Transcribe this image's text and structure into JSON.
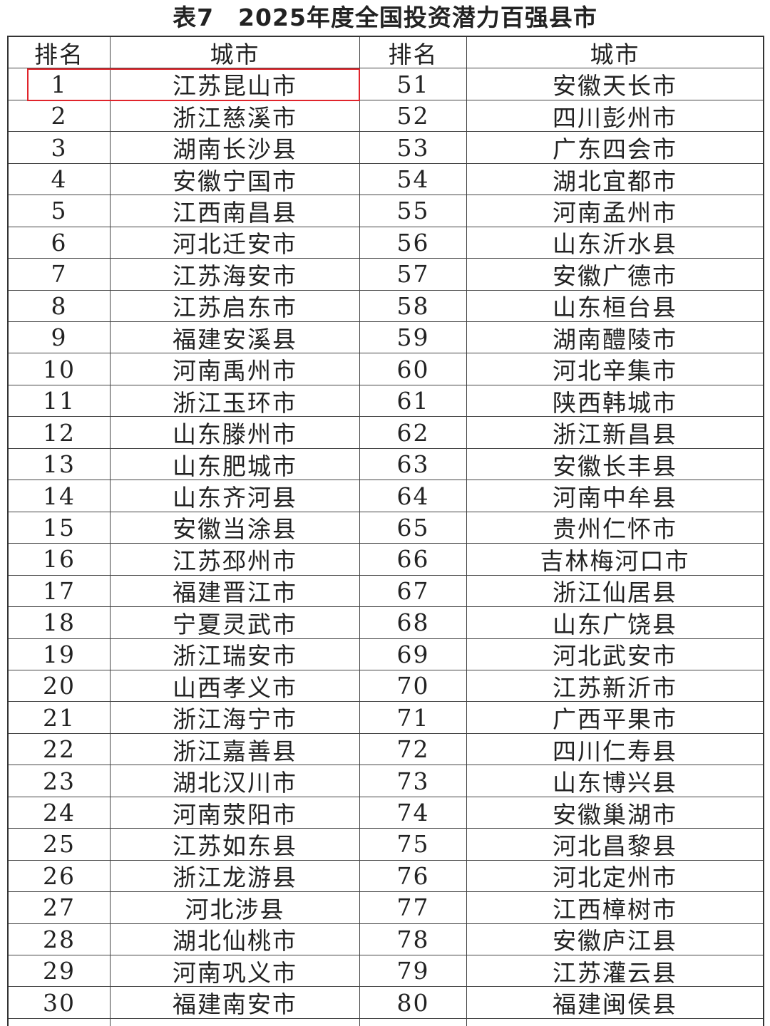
{
  "title": "表7　2025年度全国投资潜力百强县市",
  "table": {
    "columns": [
      "排名",
      "城市",
      "排名",
      "城市"
    ],
    "rows": [
      [
        1,
        "江苏昆山市",
        51,
        "安徽天长市"
      ],
      [
        2,
        "浙江慈溪市",
        52,
        "四川彭州市"
      ],
      [
        3,
        "湖南长沙县",
        53,
        "广东四会市"
      ],
      [
        4,
        "安徽宁国市",
        54,
        "湖北宜都市"
      ],
      [
        5,
        "江西南昌县",
        55,
        "河南孟州市"
      ],
      [
        6,
        "河北迁安市",
        56,
        "山东沂水县"
      ],
      [
        7,
        "江苏海安市",
        57,
        "安徽广德市"
      ],
      [
        8,
        "江苏启东市",
        58,
        "山东桓台县"
      ],
      [
        9,
        "福建安溪县",
        59,
        "湖南醴陵市"
      ],
      [
        10,
        "河南禹州市",
        60,
        "河北辛集市"
      ],
      [
        11,
        "浙江玉环市",
        61,
        "陕西韩城市"
      ],
      [
        12,
        "山东滕州市",
        62,
        "浙江新昌县"
      ],
      [
        13,
        "山东肥城市",
        63,
        "安徽长丰县"
      ],
      [
        14,
        "山东齐河县",
        64,
        "河南中牟县"
      ],
      [
        15,
        "安徽当涂县",
        65,
        "贵州仁怀市"
      ],
      [
        16,
        "江苏邳州市",
        66,
        "吉林梅河口市"
      ],
      [
        17,
        "福建晋江市",
        67,
        "浙江仙居县"
      ],
      [
        18,
        "宁夏灵武市",
        68,
        "山东广饶县"
      ],
      [
        19,
        "浙江瑞安市",
        69,
        "河北武安市"
      ],
      [
        20,
        "山西孝义市",
        70,
        "江苏新沂市"
      ],
      [
        21,
        "浙江海宁市",
        71,
        "广西平果市"
      ],
      [
        22,
        "浙江嘉善县",
        72,
        "四川仁寿县"
      ],
      [
        23,
        "湖北汉川市",
        73,
        "山东博兴县"
      ],
      [
        24,
        "河南荥阳市",
        74,
        "安徽巢湖市"
      ],
      [
        25,
        "江苏如东县",
        75,
        "河北昌黎县"
      ],
      [
        26,
        "浙江龙游县",
        76,
        "河北定州市"
      ],
      [
        27,
        "河北涉县",
        77,
        "江西樟树市"
      ],
      [
        28,
        "湖北仙桃市",
        78,
        "安徽庐江县"
      ],
      [
        29,
        "河南巩义市",
        79,
        "江苏灌云县"
      ],
      [
        30,
        "福建南安市",
        80,
        "福建闽侯县"
      ]
    ]
  }
}
